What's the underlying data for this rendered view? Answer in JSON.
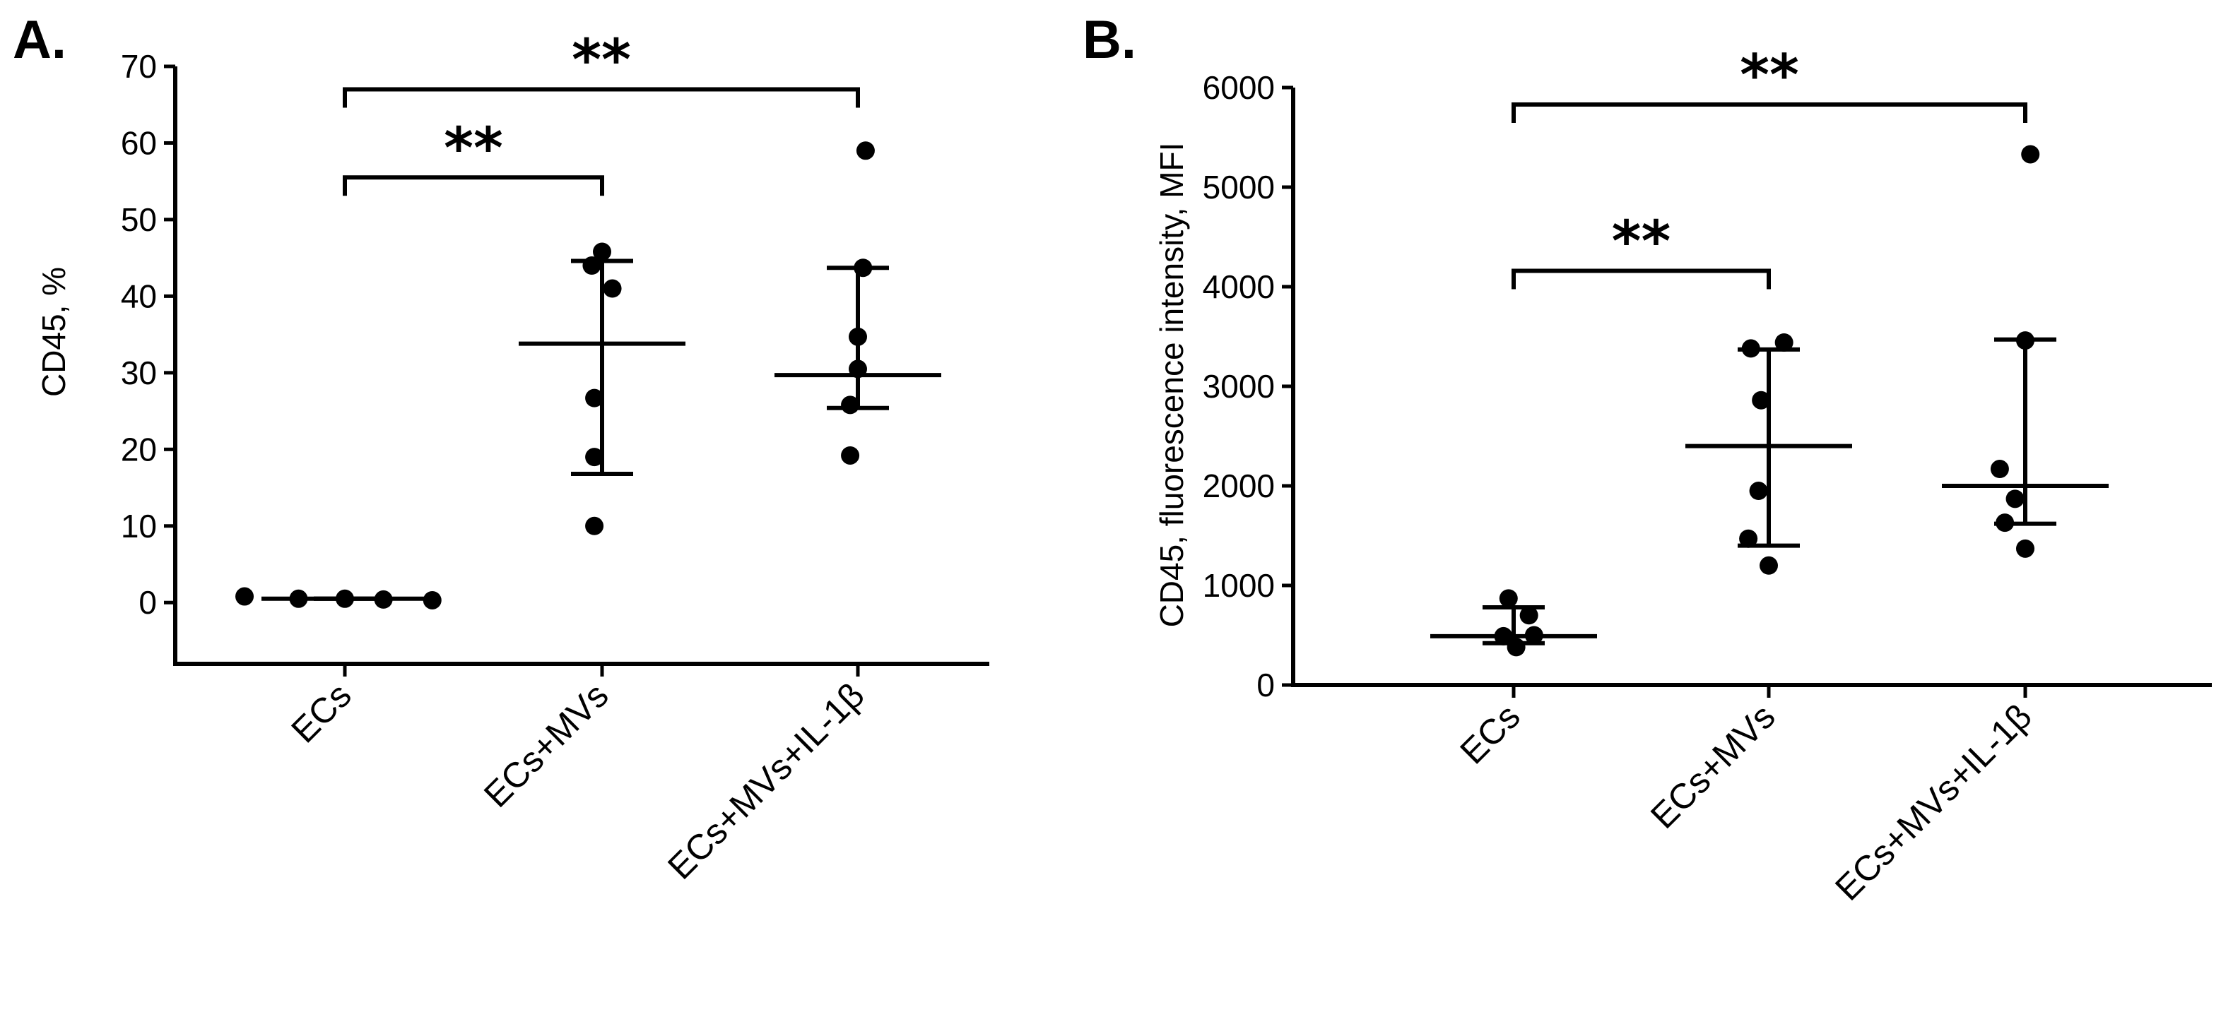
{
  "chart_data": [
    {
      "type": "scatter",
      "panel_label": "A.",
      "ylabel": "CD45, %",
      "ylim": [
        -8,
        70
      ],
      "yticks": [
        0,
        10,
        20,
        30,
        40,
        50,
        60,
        70
      ],
      "categories": [
        "ECs",
        "ECs+MVs",
        "ECs+MVs+IL-1β"
      ],
      "points": [
        [
          {
            "dx": -0.39,
            "y": 0.8
          },
          {
            "dx": -0.18,
            "y": 0.5
          },
          {
            "dx": 0.0,
            "y": 0.5
          },
          {
            "dx": 0.15,
            "y": 0.4
          },
          {
            "dx": 0.34,
            "y": 0.3
          }
        ],
        [
          {
            "dx": -0.03,
            "y": 10
          },
          {
            "dx": -0.03,
            "y": 19
          },
          {
            "dx": -0.03,
            "y": 26.7
          },
          {
            "dx": -0.04,
            "y": 44
          },
          {
            "dx": 0.0,
            "y": 45.8
          },
          {
            "dx": 0.04,
            "y": 41
          }
        ],
        [
          {
            "dx": -0.03,
            "y": 19.2
          },
          {
            "dx": -0.03,
            "y": 25.8
          },
          {
            "dx": 0.0,
            "y": 30.5
          },
          {
            "dx": 0.0,
            "y": 34.7
          },
          {
            "dx": 0.02,
            "y": 43.7
          },
          {
            "dx": 0.03,
            "y": 59
          }
        ]
      ],
      "summary": [
        {
          "center": 0.5,
          "low": 0.5,
          "high": 0.5
        },
        {
          "center": 33.8,
          "low": 16.8,
          "high": 44.6
        },
        {
          "center": 29.7,
          "low": 25.4,
          "high": 43.7
        }
      ],
      "brackets": [
        {
          "from": 0,
          "to": 1,
          "y": 55.5,
          "label": "**"
        },
        {
          "from": 0,
          "to": 2,
          "y": 67,
          "label": "**"
        }
      ]
    },
    {
      "type": "scatter",
      "panel_label": "B.",
      "ylabel": "CD45, fluorescence intensity, MFI",
      "ylim": [
        0,
        6000
      ],
      "yticks": [
        0,
        1000,
        2000,
        3000,
        4000,
        5000,
        6000
      ],
      "categories": [
        "ECs",
        "ECs+MVs",
        "ECs+MVs+IL-1β"
      ],
      "points": [
        [
          {
            "dx": -0.04,
            "y": 490
          },
          {
            "dx": -0.02,
            "y": 870
          },
          {
            "dx": 0.01,
            "y": 380
          },
          {
            "dx": 0.06,
            "y": 700
          },
          {
            "dx": 0.08,
            "y": 500
          }
        ],
        [
          {
            "dx": -0.07,
            "y": 3380
          },
          {
            "dx": 0.06,
            "y": 3440
          },
          {
            "dx": -0.03,
            "y": 2860
          },
          {
            "dx": -0.04,
            "y": 1950
          },
          {
            "dx": -0.08,
            "y": 1470
          },
          {
            "dx": 0.0,
            "y": 1200
          }
        ],
        [
          {
            "dx": 0.02,
            "y": 5330
          },
          {
            "dx": 0.0,
            "y": 3460
          },
          {
            "dx": -0.1,
            "y": 2170
          },
          {
            "dx": -0.04,
            "y": 1870
          },
          {
            "dx": -0.08,
            "y": 1630
          },
          {
            "dx": 0.0,
            "y": 1370
          }
        ]
      ],
      "summary": [
        {
          "center": 490,
          "low": 420,
          "high": 780
        },
        {
          "center": 2400,
          "low": 1400,
          "high": 3370
        },
        {
          "center": 2000,
          "low": 1620,
          "high": 3470
        }
      ],
      "brackets": [
        {
          "from": 0,
          "to": 1,
          "y": 4160,
          "label": "**"
        },
        {
          "from": 0,
          "to": 2,
          "y": 5830,
          "label": "**"
        }
      ]
    }
  ]
}
